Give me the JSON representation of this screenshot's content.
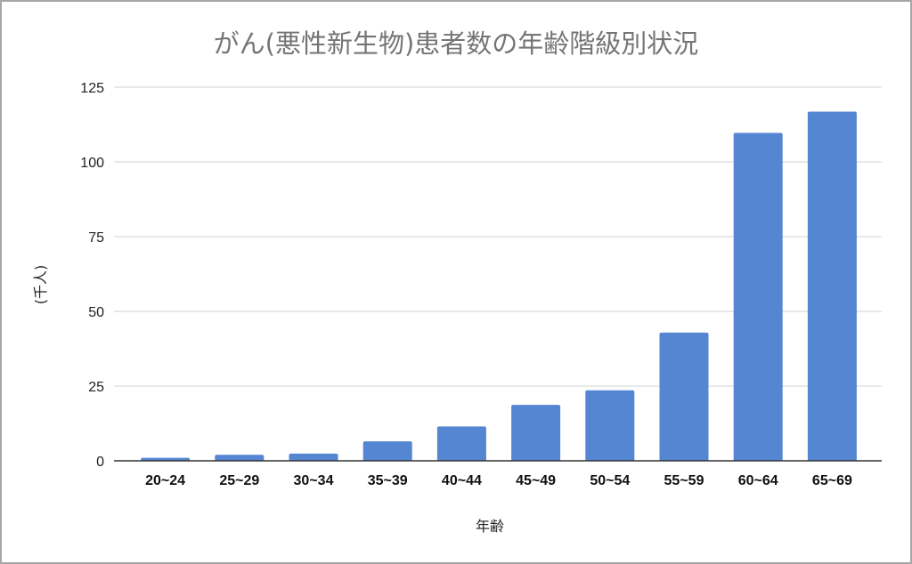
{
  "chart_data": {
    "type": "bar",
    "title": "がん(悪性新生物)患者数の年齢階級別状況",
    "xlabel": "年齢",
    "ylabel": "(千人)",
    "categories": [
      "20~24",
      "25~29",
      "30~34",
      "35~39",
      "40~44",
      "45~49",
      "50~54",
      "55~59",
      "60~64",
      "65~69"
    ],
    "values": [
      1.0,
      2.0,
      2.4,
      6.5,
      11.5,
      18.7,
      23.6,
      42.9,
      109.7,
      116.8
    ],
    "ylim": [
      0,
      125
    ],
    "yticks": [
      0,
      25,
      50,
      75,
      100,
      125
    ],
    "grid": true,
    "legend": "none",
    "bar_color": "#5486d1",
    "gridline_color": "#d9d9d9",
    "axis_color": "#333333"
  }
}
